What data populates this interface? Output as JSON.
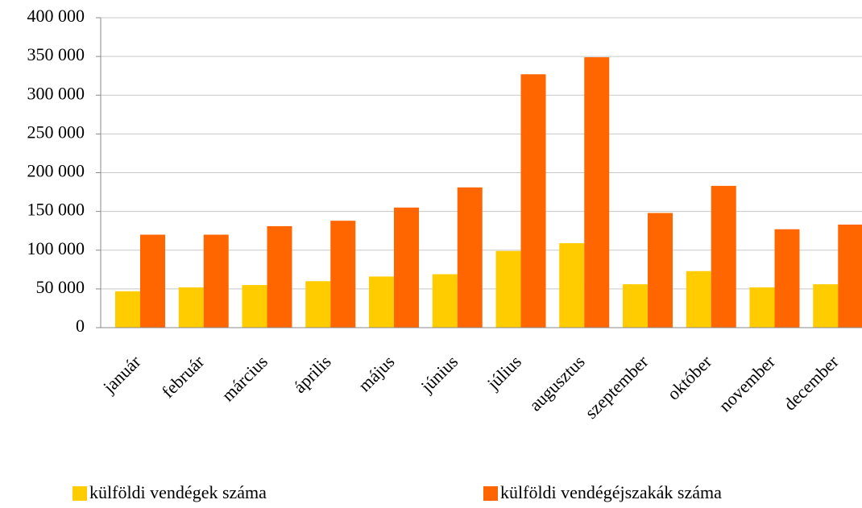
{
  "chart_data": {
    "type": "bar",
    "categories": [
      "január",
      "február",
      "március",
      "április",
      "május",
      "június",
      "július",
      "augusztus",
      "szeptember",
      "október",
      "november",
      "december"
    ],
    "series": [
      {
        "name": "külföldi vendégek száma",
        "color": "#ffcc00",
        "values": [
          47000,
          52000,
          55000,
          60000,
          66000,
          69000,
          99000,
          109000,
          56000,
          73000,
          52000,
          56000
        ]
      },
      {
        "name": "külföldi vendégéjszakák száma",
        "color": "#ff6600",
        "values": [
          120000,
          120000,
          131000,
          138000,
          155000,
          181000,
          327000,
          349000,
          148000,
          183000,
          127000,
          133000
        ]
      }
    ],
    "ylim": [
      0,
      400000
    ],
    "yticks": [
      0,
      {
        "value": 50000,
        "label": "50 000"
      },
      {
        "value": 100000,
        "label": "100 000"
      },
      {
        "value": 150000,
        "label": "150 000"
      },
      {
        "value": 200000,
        "label": "200 000"
      },
      {
        "value": 250000,
        "label": "250 000"
      },
      {
        "value": 300000,
        "label": "300 000"
      },
      {
        "value": 350000,
        "label": "350 000"
      },
      {
        "value": 400000,
        "label": "400 000"
      }
    ],
    "grid": true,
    "legend": "bottom"
  }
}
